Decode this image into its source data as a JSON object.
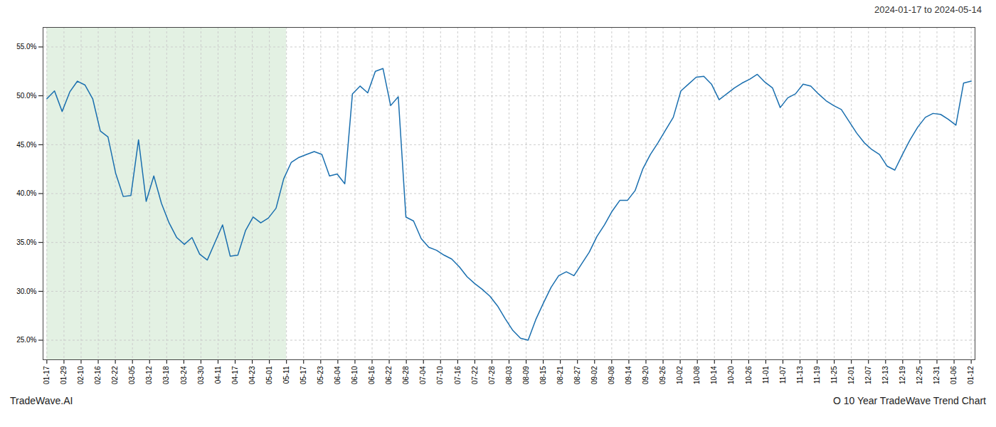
{
  "chart_data": {
    "type": "line",
    "title": "2024-01-17 to 2024-05-14",
    "footer_left": "TradeWave.AI",
    "footer_right": "O 10 Year TradeWave Trend Chart",
    "color": "#1a6faf",
    "grid": true,
    "xlim": [
      -0.5,
      121.5
    ],
    "xticks": [
      {
        "value": 0,
        "label": "01-17"
      },
      {
        "value": 2.240741,
        "label": "01-29"
      },
      {
        "value": 4.481481,
        "label": "02-10"
      },
      {
        "value": 6.722222,
        "label": "02-16"
      },
      {
        "value": 8.962963,
        "label": "02-22"
      },
      {
        "value": 11.203704,
        "label": "03-05"
      },
      {
        "value": 13.444444,
        "label": "03-12"
      },
      {
        "value": 15.685185,
        "label": "03-18"
      },
      {
        "value": 17.925926,
        "label": "03-24"
      },
      {
        "value": 20.166667,
        "label": "03-30"
      },
      {
        "value": 22.407407,
        "label": "04-11"
      },
      {
        "value": 24.648148,
        "label": "04-17"
      },
      {
        "value": 26.888889,
        "label": "04-23"
      },
      {
        "value": 29.12963,
        "label": "05-01"
      },
      {
        "value": 31.37037,
        "label": "05-11"
      },
      {
        "value": 33.611111,
        "label": "05-17"
      },
      {
        "value": 35.851852,
        "label": "05-23"
      },
      {
        "value": 38.092593,
        "label": "06-04"
      },
      {
        "value": 40.333333,
        "label": "06-10"
      },
      {
        "value": 42.574074,
        "label": "06-16"
      },
      {
        "value": 44.814815,
        "label": "06-22"
      },
      {
        "value": 47.055556,
        "label": "06-28"
      },
      {
        "value": 49.296296,
        "label": "07-04"
      },
      {
        "value": 51.537037,
        "label": "07-10"
      },
      {
        "value": 53.777778,
        "label": "07-16"
      },
      {
        "value": 56.018519,
        "label": "07-22"
      },
      {
        "value": 58.259259,
        "label": "07-28"
      },
      {
        "value": 60.5,
        "label": "08-03"
      },
      {
        "value": 62.740741,
        "label": "08-09"
      },
      {
        "value": 64.981481,
        "label": "08-15"
      },
      {
        "value": 67.222222,
        "label": "08-21"
      },
      {
        "value": 69.462963,
        "label": "08-27"
      },
      {
        "value": 71.703704,
        "label": "09-02"
      },
      {
        "value": 73.944444,
        "label": "09-08"
      },
      {
        "value": 76.185185,
        "label": "09-14"
      },
      {
        "value": 78.425926,
        "label": "09-20"
      },
      {
        "value": 80.666667,
        "label": "09-26"
      },
      {
        "value": 82.907407,
        "label": "10-02"
      },
      {
        "value": 85.148148,
        "label": "10-08"
      },
      {
        "value": 87.388889,
        "label": "10-14"
      },
      {
        "value": 89.62963,
        "label": "10-20"
      },
      {
        "value": 91.87037,
        "label": "10-26"
      },
      {
        "value": 94.111111,
        "label": "11-01"
      },
      {
        "value": 96.351852,
        "label": "11-07"
      },
      {
        "value": 98.592593,
        "label": "11-13"
      },
      {
        "value": 100.833333,
        "label": "11-19"
      },
      {
        "value": 103.074074,
        "label": "11-25"
      },
      {
        "value": 105.314815,
        "label": "12-01"
      },
      {
        "value": 107.555556,
        "label": "12-07"
      },
      {
        "value": 109.796296,
        "label": "12-13"
      },
      {
        "value": 112.037037,
        "label": "12-19"
      },
      {
        "value": 114.277778,
        "label": "12-25"
      },
      {
        "value": 116.518519,
        "label": "12-31"
      },
      {
        "value": 118.759259,
        "label": "01-06"
      },
      {
        "value": 121,
        "label": "01-12"
      }
    ],
    "ylim": [
      0.23,
      0.57
    ],
    "yticks": [
      {
        "value": 0.25,
        "label": "25.0%"
      },
      {
        "value": 0.3,
        "label": "30.0%"
      },
      {
        "value": 0.35,
        "label": "35.0%"
      },
      {
        "value": 0.4,
        "label": "40.0%"
      },
      {
        "value": 0.45,
        "label": "45.0%"
      },
      {
        "value": 0.5,
        "label": "50.0%"
      },
      {
        "value": 0.55,
        "label": "55.0%"
      }
    ],
    "spans": [
      {
        "from": 0,
        "to": 31.37037,
        "color": "#d4ead4"
      }
    ],
    "values": [
      0.497,
      0.505,
      0.484,
      0.504,
      0.515,
      0.511,
      0.497,
      0.464,
      0.458,
      0.421,
      0.397,
      0.398,
      0.455,
      0.392,
      0.418,
      0.39,
      0.37,
      0.355,
      0.348,
      0.355,
      0.338,
      0.332,
      0.35,
      0.368,
      0.336,
      0.337,
      0.362,
      0.376,
      0.37,
      0.375,
      0.385,
      0.415,
      0.432,
      0.437,
      0.44,
      0.443,
      0.44,
      0.418,
      0.42,
      0.41,
      0.502,
      0.51,
      0.503,
      0.525,
      0.528,
      0.49,
      0.499,
      0.376,
      0.372,
      0.354,
      0.345,
      0.342,
      0.337,
      0.333,
      0.325,
      0.315,
      0.308,
      0.302,
      0.295,
      0.285,
      0.272,
      0.26,
      0.252,
      0.25,
      0.271,
      0.288,
      0.304,
      0.316,
      0.32,
      0.316,
      0.328,
      0.34,
      0.356,
      0.368,
      0.382,
      0.393,
      0.393,
      0.403,
      0.425,
      0.44,
      0.452,
      0.465,
      0.478,
      0.505,
      0.512,
      0.519,
      0.52,
      0.512,
      0.496,
      0.502,
      0.508,
      0.513,
      0.517,
      0.522,
      0.514,
      0.508,
      0.488,
      0.498,
      0.502,
      0.512,
      0.51,
      0.502,
      0.495,
      0.49,
      0.486,
      0.474,
      0.462,
      0.452,
      0.445,
      0.44,
      0.428,
      0.424,
      0.44,
      0.455,
      0.468,
      0.478,
      0.482,
      0.481,
      0.476,
      0.47,
      0.513,
      0.515
    ]
  }
}
